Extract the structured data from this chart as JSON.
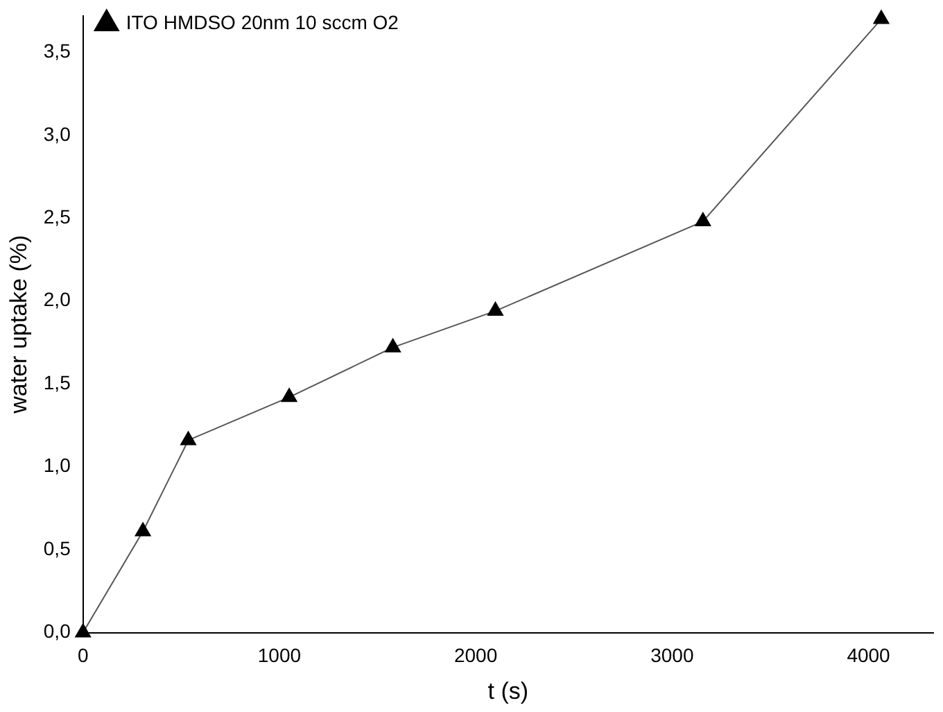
{
  "chart_data": {
    "type": "line",
    "xlabel": "t (s)",
    "ylabel": "water uptake (%)",
    "x": [
      0,
      305,
      536,
      1050,
      1578,
      2100,
      3157,
      4065
    ],
    "series": [
      {
        "name": "ITO HMDSO 20nm 10 sccm O2",
        "color": "#000000",
        "values": [
          0,
          0.61,
          1.16,
          1.42,
          1.72,
          1.94,
          2.48,
          3.7
        ]
      }
    ],
    "xlim": [
      0,
      4330
    ],
    "xticks": [
      0,
      1000,
      2000,
      3000,
      4000
    ],
    "ylim": [
      0,
      3.72
    ],
    "yticks": [
      {
        "value": 0,
        "label": "0,0"
      },
      {
        "value": 0.5,
        "label": "0,5"
      },
      {
        "value": 1,
        "label": "1,0"
      },
      {
        "value": 1.5,
        "label": "1,5"
      },
      {
        "value": 2,
        "label": "2,0"
      },
      {
        "value": 2.5,
        "label": "2,5"
      },
      {
        "value": 3,
        "label": "3,0"
      },
      {
        "value": 3.5,
        "label": "3,5"
      }
    ],
    "grid": false,
    "legend": "top left",
    "marker": "triangle",
    "line_style": "solid"
  }
}
